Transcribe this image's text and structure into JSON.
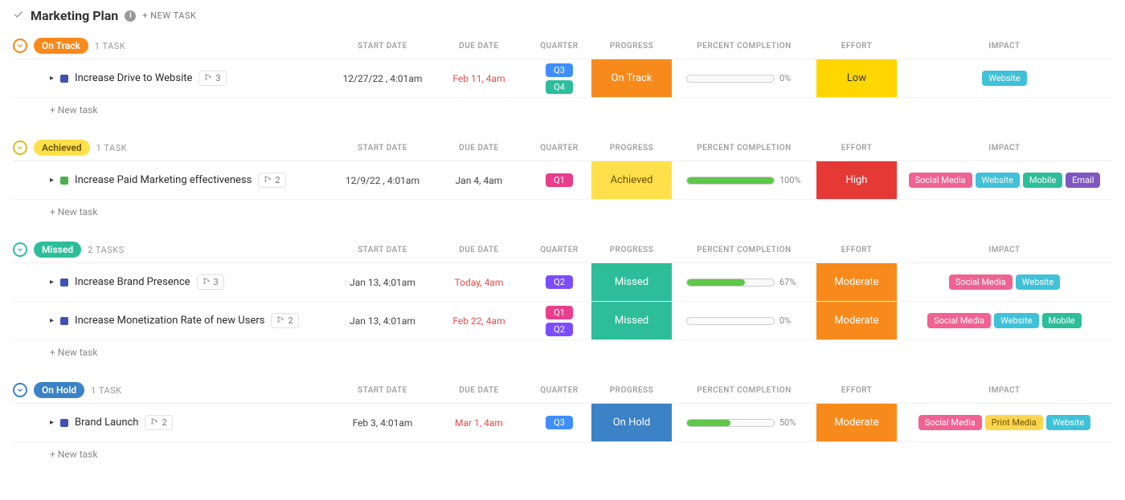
{
  "header": {
    "title": "Marketing Plan",
    "new_task_label": "+ NEW TASK"
  },
  "columns": {
    "start_date": "START DATE",
    "due_date": "DUE DATE",
    "quarter": "QUARTER",
    "progress": "PROGRESS",
    "percent_completion": "PERCENT COMPLETION",
    "effort": "EFFORT",
    "impact": "IMPACT"
  },
  "colors": {
    "on_track": "#f88a1c",
    "achieved_pill_bg": "#ffe04a",
    "achieved_pill_text": "#6a5200",
    "missed": "#2dbd9b",
    "on_hold": "#3b82c7",
    "q1": "#e83e8c",
    "q2": "#7c4dff",
    "q3": "#3f8efc",
    "q4": "#2dbd9b",
    "effort_low": "#ffd600",
    "effort_moderate": "#f88a1c",
    "effort_high": "#e53935",
    "impact_website": "#3fc1d9",
    "impact_social": "#f06292",
    "impact_mobile": "#2dbd9b",
    "impact_email": "#7e57c2",
    "impact_print": "#ffd54f",
    "sq_blue": "#3f51b5",
    "sq_green": "#4caf50"
  },
  "new_task_text": "+ New task",
  "sections": [
    {
      "status_label": "On Track",
      "pill_bg": "#f88a1c",
      "pill_text": "#ffffff",
      "circle_color": "#f88a1c",
      "task_count": "1 TASK",
      "tasks": [
        {
          "name": "Increase Drive to Website",
          "sq_color": "#3f51b5",
          "subtasks": "3",
          "start_date": "12/27/22 , 4:01am",
          "due_date": "Feb 11, 4am",
          "due_red": true,
          "quarters": [
            {
              "label": "Q3",
              "color": "#3f8efc"
            },
            {
              "label": "Q4",
              "color": "#2dbd9b"
            }
          ],
          "progress": {
            "label": "On Track",
            "color": "#f88a1c"
          },
          "percent": 0,
          "effort": {
            "label": "Low",
            "color": "#ffd600",
            "text": "#333"
          },
          "impact": [
            {
              "label": "Website",
              "color": "#3fc1d9"
            }
          ]
        }
      ]
    },
    {
      "status_label": "Achieved",
      "pill_bg": "#ffe04a",
      "pill_text": "#6a5200",
      "circle_color": "#d9c020",
      "task_count": "1 TASK",
      "tasks": [
        {
          "name": "Increase Paid Marketing effectiveness",
          "sq_color": "#4caf50",
          "subtasks": "2",
          "start_date": "12/9/22 , 4:01am",
          "due_date": "Jan 4, 4am",
          "due_red": false,
          "quarters": [
            {
              "label": "Q1",
              "color": "#e83e8c"
            }
          ],
          "progress": {
            "label": "Achieved",
            "color": "#ffe04a",
            "text": "#6a5200"
          },
          "percent": 100,
          "effort": {
            "label": "High",
            "color": "#e53935"
          },
          "impact": [
            {
              "label": "Social Media",
              "color": "#f06292"
            },
            {
              "label": "Website",
              "color": "#3fc1d9"
            },
            {
              "label": "Mobile",
              "color": "#2dbd9b"
            },
            {
              "label": "Email",
              "color": "#7e57c2"
            }
          ]
        }
      ]
    },
    {
      "status_label": "Missed",
      "pill_bg": "#2dbd9b",
      "pill_text": "#ffffff",
      "circle_color": "#2dbd9b",
      "task_count": "2 TASKS",
      "tasks": [
        {
          "name": "Increase Brand Presence",
          "sq_color": "#3f51b5",
          "subtasks": "3",
          "start_date": "Jan 13, 4:01am",
          "due_date": "Today, 4am",
          "due_red": true,
          "quarters": [
            {
              "label": "Q2",
              "color": "#7c4dff"
            }
          ],
          "progress": {
            "label": "Missed",
            "color": "#2dbd9b"
          },
          "percent": 67,
          "effort": {
            "label": "Moderate",
            "color": "#f88a1c"
          },
          "impact": [
            {
              "label": "Social Media",
              "color": "#f06292"
            },
            {
              "label": "Website",
              "color": "#3fc1d9"
            }
          ]
        },
        {
          "name": "Increase Monetization Rate of new Users",
          "sq_color": "#3f51b5",
          "subtasks": "2",
          "start_date": "Jan 13, 4:01am",
          "due_date": "Feb 22, 4am",
          "due_red": true,
          "quarters": [
            {
              "label": "Q1",
              "color": "#e83e8c"
            },
            {
              "label": "Q2",
              "color": "#7c4dff"
            }
          ],
          "progress": {
            "label": "Missed",
            "color": "#2dbd9b"
          },
          "percent": 0,
          "effort": {
            "label": "Moderate",
            "color": "#f88a1c"
          },
          "impact": [
            {
              "label": "Social Media",
              "color": "#f06292"
            },
            {
              "label": "Website",
              "color": "#3fc1d9"
            },
            {
              "label": "Mobile",
              "color": "#2dbd9b"
            }
          ]
        }
      ]
    },
    {
      "status_label": "On Hold",
      "pill_bg": "#3b82c7",
      "pill_text": "#ffffff",
      "circle_color": "#3b82c7",
      "task_count": "1 TASK",
      "tasks": [
        {
          "name": "Brand Launch",
          "sq_color": "#3f51b5",
          "subtasks": "2",
          "start_date": "Feb 3, 4:01am",
          "due_date": "Mar 1, 4am",
          "due_red": true,
          "quarters": [
            {
              "label": "Q3",
              "color": "#3f8efc"
            }
          ],
          "progress": {
            "label": "On Hold",
            "color": "#3b82c7"
          },
          "percent": 50,
          "effort": {
            "label": "Moderate",
            "color": "#f88a1c"
          },
          "impact": [
            {
              "label": "Social Media",
              "color": "#f06292"
            },
            {
              "label": "Print Media",
              "color": "#ffd54f",
              "text": "#6a5200"
            },
            {
              "label": "Website",
              "color": "#3fc1d9"
            }
          ]
        }
      ]
    }
  ]
}
